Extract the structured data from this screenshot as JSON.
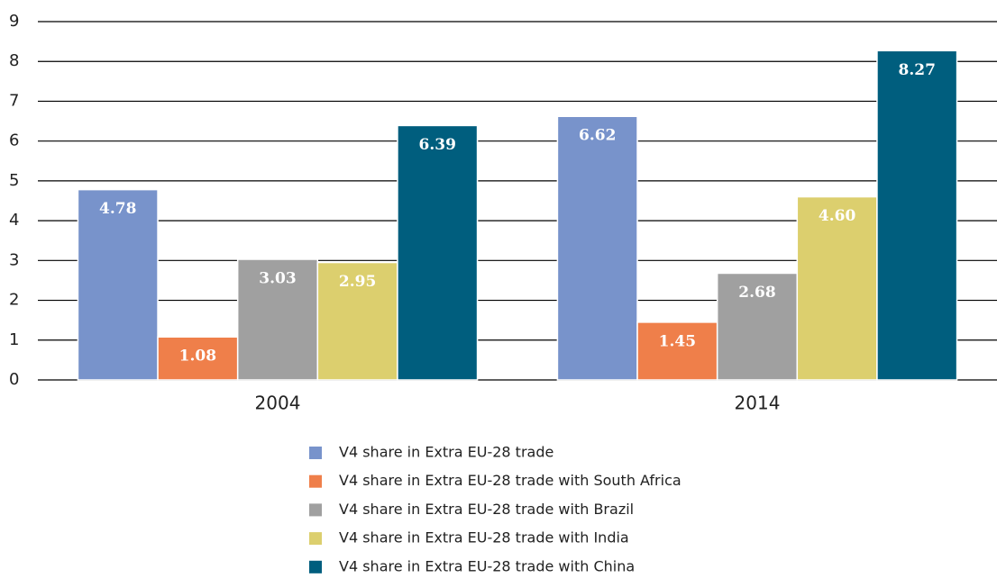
{
  "chart_data": {
    "type": "bar",
    "categories": [
      "2004",
      "2014"
    ],
    "series": [
      {
        "name": "V4 share in Extra EU-28 trade",
        "color": "#7893cb",
        "values": [
          4.78,
          6.62
        ],
        "value_labels": [
          "4.78",
          "6.62"
        ]
      },
      {
        "name": "V4 share in Extra EU-28 trade with South Africa",
        "color": "#ef7f4a",
        "values": [
          1.08,
          1.45
        ],
        "value_labels": [
          "1.08",
          "1.45"
        ]
      },
      {
        "name": "V4 share in Extra EU-28 trade with Brazil",
        "color": "#a0a0a0",
        "values": [
          3.03,
          2.68
        ],
        "value_labels": [
          "3.03",
          "2.68"
        ]
      },
      {
        "name": "V4 share in Extra EU-28 trade with India",
        "color": "#dccf6e",
        "values": [
          2.95,
          4.6
        ],
        "value_labels": [
          "2.95",
          "4.60"
        ]
      },
      {
        "name": "V4 share in Extra EU-28 trade with China",
        "color": "#005e7e",
        "values": [
          6.39,
          8.27
        ],
        "value_labels": [
          "6.39",
          "8.27"
        ]
      }
    ],
    "ylim": [
      0,
      9
    ],
    "yticks": [
      0,
      1,
      2,
      3,
      4,
      5,
      6,
      7,
      8,
      9
    ],
    "grid": true,
    "legend": "bottom"
  }
}
